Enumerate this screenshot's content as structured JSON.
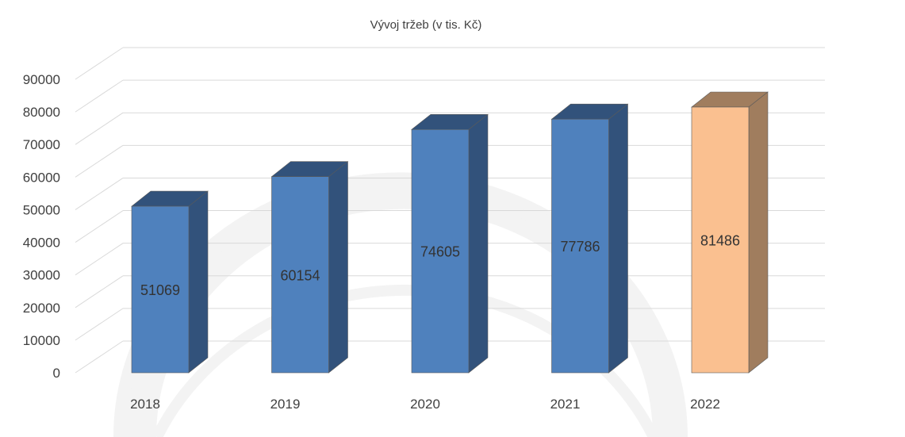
{
  "chart_data": {
    "type": "bar",
    "title": "Vývoj tržeb (v tis. Kč)",
    "xlabel": "",
    "ylabel": "",
    "categories": [
      "2018",
      "2019",
      "2020",
      "2021",
      "2022"
    ],
    "values": [
      51069,
      60154,
      74605,
      77786,
      81486
    ],
    "data_labels": [
      "51069",
      "60154",
      "74605",
      "77786",
      "81486"
    ],
    "ylim": [
      0,
      90000
    ],
    "yticks": [
      0,
      10000,
      20000,
      30000,
      40000,
      50000,
      60000,
      70000,
      80000,
      90000
    ],
    "ytick_labels": [
      "0",
      "10000",
      "20000",
      "30000",
      "40000",
      "50000",
      "60000",
      "70000",
      "80000",
      "90000"
    ],
    "grid": true,
    "style": "3d-column",
    "colors": {
      "bar_front": "#4f81bd",
      "bar_side": "#32527b",
      "highlight_front": "#fac090",
      "highlight_side": "#a07d5e",
      "grid": "#d9d9d9",
      "text": "#404040"
    },
    "highlight_index": 4
  }
}
